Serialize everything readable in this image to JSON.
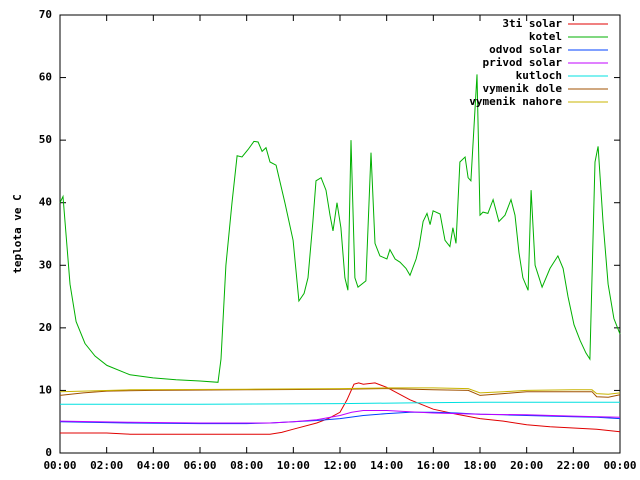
{
  "chart_data": {
    "type": "line",
    "y_label": "teplota ve C",
    "ylim": [
      0,
      70
    ],
    "yticks": [
      0,
      10,
      20,
      30,
      40,
      50,
      60,
      70
    ],
    "xlim": [
      0,
      24
    ],
    "xticks": [
      {
        "value": 0,
        "label": "00:00"
      },
      {
        "value": 2,
        "label": "02:00"
      },
      {
        "value": 4,
        "label": "04:00"
      },
      {
        "value": 6,
        "label": "06:00"
      },
      {
        "value": 8,
        "label": "08:00"
      },
      {
        "value": 10,
        "label": "10:00"
      },
      {
        "value": 12,
        "label": "12:00"
      },
      {
        "value": 14,
        "label": "14:00"
      },
      {
        "value": 16,
        "label": "16:00"
      },
      {
        "value": 18,
        "label": "18:00"
      },
      {
        "value": 20,
        "label": "20:00"
      },
      {
        "value": 22,
        "label": "22:00"
      },
      {
        "value": 24,
        "label": "00:00"
      }
    ],
    "legend": "top-right",
    "series": [
      {
        "name": "3ti solar",
        "color": "#e00000",
        "x": [
          0,
          2,
          3,
          9,
          9.5,
          10,
          11,
          11.5,
          12,
          12.3,
          12.6,
          12.8,
          13,
          13.5,
          14,
          15,
          16,
          17,
          18,
          19,
          20,
          21,
          22,
          23,
          24
        ],
        "values": [
          3.2,
          3.2,
          3,
          3,
          3.3,
          3.8,
          4.8,
          5.5,
          6.5,
          8.5,
          11,
          11.2,
          11,
          11.2,
          10.5,
          8.5,
          7,
          6.2,
          5.5,
          5.1,
          4.5,
          4.2,
          4,
          3.8,
          3.4
        ]
      },
      {
        "name": "kotel",
        "color": "#00b000",
        "x": [
          0,
          0.13,
          0.3,
          0.43,
          0.69,
          1.07,
          1.5,
          2.01,
          3,
          3.99,
          4.97,
          6,
          6.77,
          6.9,
          7.11,
          7.37,
          7.59,
          7.8,
          8.06,
          8.31,
          8.49,
          8.66,
          8.83,
          9,
          9.26,
          9.64,
          9.99,
          10.24,
          10.46,
          10.63,
          10.84,
          10.97,
          11.19,
          11.4,
          11.57,
          11.7,
          11.87,
          12.04,
          12.21,
          12.34,
          12.47,
          12.64,
          12.77,
          13.11,
          13.33,
          13.5,
          13.71,
          14.01,
          14.14,
          14.36,
          14.57,
          14.83,
          15,
          15.26,
          15.39,
          15.56,
          15.73,
          15.86,
          15.99,
          16.29,
          16.5,
          16.71,
          16.84,
          16.97,
          17.14,
          17.36,
          17.49,
          17.61,
          17.87,
          18,
          18.13,
          18.34,
          18.56,
          18.81,
          19.07,
          19.33,
          19.5,
          19.67,
          19.84,
          20.06,
          20.19,
          20.36,
          20.66,
          21,
          21.34,
          21.56,
          21.77,
          22.03,
          22.29,
          22.54,
          22.71,
          22.93,
          23.06,
          23.27,
          23.49,
          23.74,
          24
        ],
        "values": [
          40,
          41,
          33,
          27,
          21,
          17.5,
          15.5,
          14,
          12.5,
          12,
          11.7,
          11.5,
          11.3,
          15,
          30,
          40,
          47.5,
          47.3,
          48.5,
          49.8,
          49.7,
          48.2,
          48.8,
          46.5,
          46,
          40,
          34,
          24.3,
          25.5,
          28,
          37,
          43.5,
          44,
          42,
          38,
          35.5,
          40,
          36,
          28,
          26,
          50,
          28,
          26.5,
          27.5,
          48,
          33.5,
          31.5,
          31,
          32.5,
          31,
          30.5,
          29.5,
          28.4,
          31,
          33,
          37,
          38.3,
          36.5,
          38.7,
          38.2,
          34,
          33,
          36,
          33.5,
          46.5,
          47.3,
          44,
          43.5,
          60.5,
          38,
          38.5,
          38.3,
          40.5,
          37,
          38,
          40.5,
          38,
          32,
          28,
          26,
          42,
          30,
          26.5,
          29.5,
          31.5,
          29.5,
          25,
          20.5,
          18,
          16,
          15,
          46.5,
          49,
          37,
          27,
          21.5,
          19
        ]
      },
      {
        "name": "odvod solar",
        "color": "#0040ff",
        "x": [
          0,
          3,
          6,
          8,
          9,
          10,
          11,
          12,
          13,
          14,
          15,
          16,
          17,
          18,
          19,
          20,
          21,
          22,
          23,
          24
        ],
        "values": [
          5,
          4.8,
          4.7,
          4.7,
          4.8,
          5,
          5.2,
          5.5,
          6,
          6.3,
          6.5,
          6.5,
          6.4,
          6.2,
          6.1,
          6,
          5.9,
          5.8,
          5.7,
          5.5
        ]
      },
      {
        "name": "privod solar",
        "color": "#c000ff",
        "x": [
          0,
          3,
          6,
          9,
          10,
          11,
          12,
          12.5,
          13,
          14,
          15,
          16,
          17,
          18,
          20,
          22,
          24
        ],
        "values": [
          5.1,
          4.9,
          4.8,
          4.8,
          5,
          5.3,
          6,
          6.5,
          6.8,
          6.8,
          6.6,
          6.4,
          6.3,
          6.2,
          6.1,
          5.9,
          5.7
        ]
      },
      {
        "name": "kutloch",
        "color": "#00e0e0",
        "x": [
          0,
          6,
          12,
          15,
          18,
          24
        ],
        "values": [
          7.8,
          7.8,
          7.9,
          8,
          8.1,
          8.1
        ]
      },
      {
        "name": "vymenik dole",
        "color": "#a05000",
        "x": [
          0,
          1,
          2,
          4,
          8,
          12,
          14,
          16,
          17.5,
          18,
          19,
          20,
          22,
          22.8,
          23,
          23.5,
          24
        ],
        "values": [
          9.2,
          9.6,
          9.9,
          10,
          10.1,
          10.2,
          10.3,
          10.1,
          10,
          9.2,
          9.5,
          9.8,
          9.8,
          9.8,
          9,
          8.9,
          9.3
        ]
      },
      {
        "name": "vymenik nahore",
        "color": "#c8b400",
        "x": [
          0,
          1,
          3,
          8,
          12,
          14,
          16,
          17.5,
          18,
          19,
          20,
          22,
          22.8,
          23,
          23.5,
          24
        ],
        "values": [
          9.8,
          9.9,
          10.1,
          10.2,
          10.3,
          10.4,
          10.4,
          10.3,
          9.6,
          9.8,
          10,
          10.1,
          10.1,
          9.5,
          9.4,
          9.6
        ]
      }
    ]
  }
}
